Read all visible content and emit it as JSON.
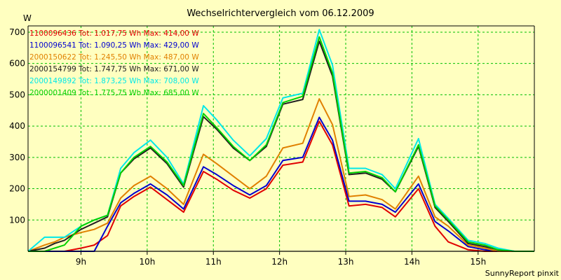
{
  "chart_data": {
    "type": "line",
    "title": "Wechselrichtervergleich vom 06.12.2009",
    "ylabel": "W",
    "xlabel": "",
    "footer": "SunnyReport pinxit",
    "ylim": [
      0,
      720
    ],
    "xlim": [
      8.2,
      15.85
    ],
    "yticks": [
      100,
      200,
      300,
      400,
      500,
      600,
      700
    ],
    "xticks": [
      {
        "value": 9,
        "label": "9h"
      },
      {
        "value": 10,
        "label": "10h"
      },
      {
        "value": 11,
        "label": "11h"
      },
      {
        "value": 12,
        "label": "12h"
      },
      {
        "value": 13,
        "label": "13h"
      },
      {
        "value": 14,
        "label": "14h"
      },
      {
        "value": 15,
        "label": "15h"
      }
    ],
    "grid": true,
    "legend_position": "top-left",
    "x": [
      8.2,
      8.45,
      8.6,
      8.75,
      9.0,
      9.2,
      9.4,
      9.6,
      9.8,
      10.05,
      10.3,
      10.55,
      10.85,
      11.05,
      11.3,
      11.55,
      11.8,
      12.05,
      12.35,
      12.6,
      12.8,
      13.05,
      13.3,
      13.55,
      13.75,
      14.1,
      14.35,
      14.55,
      14.85,
      15.1,
      15.3,
      15.55,
      15.85
    ],
    "series": [
      {
        "name": "1100096436",
        "label": "1100096436 Tot: 1.017,75 Wh Max: 414,00 W",
        "color": "#E00000",
        "values": [
          0,
          0,
          0,
          0,
          10,
          20,
          50,
          145,
          175,
          205,
          165,
          125,
          255,
          230,
          195,
          170,
          200,
          275,
          285,
          415,
          340,
          145,
          150,
          140,
          110,
          200,
          80,
          30,
          5,
          0,
          0,
          0,
          0
        ]
      },
      {
        "name": "1100096541",
        "label": "1100096541 Tot: 1.090,25 Wh Max: 429,00 W",
        "color": "#0000D0",
        "values": [
          0,
          0,
          0,
          0,
          0,
          0,
          80,
          155,
          185,
          215,
          180,
          135,
          270,
          245,
          210,
          180,
          210,
          290,
          300,
          428,
          355,
          160,
          160,
          150,
          125,
          215,
          95,
          65,
          15,
          5,
          0,
          0,
          0
        ]
      },
      {
        "name": "2000150622",
        "label": "2000150622 Tot: 1.245,50 Wh Max: 487,00 W",
        "color": "#E08000",
        "values": [
          0,
          20,
          30,
          45,
          60,
          70,
          90,
          170,
          210,
          240,
          200,
          150,
          310,
          280,
          240,
          200,
          240,
          330,
          345,
          487,
          405,
          175,
          180,
          165,
          135,
          240,
          110,
          80,
          20,
          10,
          0,
          0,
          0
        ]
      },
      {
        "name": "2000154799",
        "label": "2000154799 Tot: 1.747,75 Wh Max: 671,00 W",
        "color": "#202020",
        "values": [
          0,
          10,
          25,
          35,
          70,
          90,
          110,
          250,
          295,
          330,
          280,
          205,
          430,
          390,
          330,
          290,
          335,
          470,
          485,
          671,
          560,
          245,
          250,
          230,
          190,
          335,
          140,
          95,
          25,
          15,
          5,
          0,
          0
        ]
      },
      {
        "name": "2000149892",
        "label": "2000149892 Tot: 1.873,25 Wh Max: 708,00 W",
        "color": "#00E8E8",
        "values": [
          0,
          45,
          45,
          45,
          80,
          100,
          115,
          265,
          315,
          355,
          300,
          215,
          465,
          420,
          355,
          305,
          360,
          490,
          505,
          708,
          595,
          265,
          265,
          245,
          200,
          360,
          150,
          105,
          35,
          25,
          10,
          0,
          0
        ]
      },
      {
        "name": "2000001409",
        "label": "2000001409 Tot: 1.775,75 Wh Max: 685,00 W",
        "color": "#00D000",
        "values": [
          0,
          0,
          10,
          20,
          80,
          100,
          115,
          250,
          300,
          335,
          285,
          210,
          440,
          395,
          335,
          290,
          340,
          475,
          495,
          685,
          570,
          250,
          255,
          235,
          190,
          340,
          145,
          100,
          30,
          20,
          5,
          0,
          0
        ]
      }
    ]
  }
}
